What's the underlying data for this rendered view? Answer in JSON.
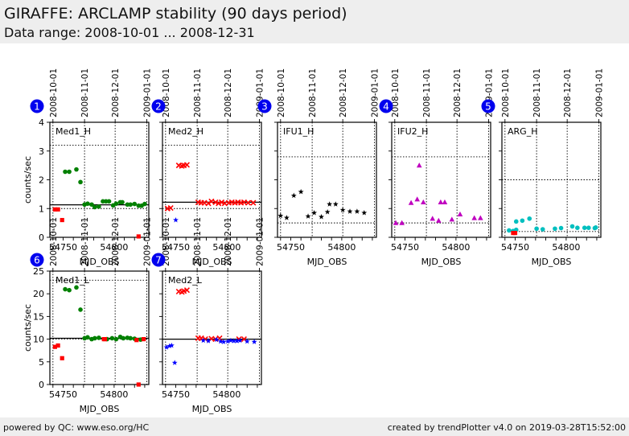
{
  "header": {
    "title": "GIRAFFE: ARCLAMP stability (90 days period)",
    "subtitle": "Data range: 2008-10-01 ... 2008-12-31"
  },
  "footer": {
    "left": "powered by QC: www.eso.org/HC",
    "right": "created by trendPlotter v4.0 on 2019-03-28T15:52:00"
  },
  "colors": {
    "badge": "#0000ee",
    "green": "#008000",
    "red": "#ff0000",
    "blue": "#0000ff",
    "black": "#000000",
    "magenta": "#bf00bf",
    "cyan": "#00bfbf"
  },
  "chart_data": [
    {
      "type": "scatter",
      "panel": 1,
      "label": "Med1_H",
      "xlabel": "MJD_OBS",
      "ylabel": "counts/sec",
      "xlim": [
        54737,
        54834
      ],
      "ylim": [
        0,
        4
      ],
      "yticks": [
        0,
        1,
        2,
        3,
        4
      ],
      "ytick_labels": [
        "0",
        "1",
        "2",
        "3",
        "4"
      ],
      "xticks": [
        54750,
        54800
      ],
      "xtick_labels": [
        "54750",
        "54800"
      ],
      "date_ticks": [
        {
          "mjd": 54740,
          "label": "2008-10-01"
        },
        {
          "mjd": 54771,
          "label": "2008-11-01"
        },
        {
          "mjd": 54801,
          "label": "2008-12-01"
        },
        {
          "mjd": 54832,
          "label": "2009-01-01"
        }
      ],
      "reference_line": 1.13,
      "threshold_lines": [
        1.0,
        3.2
      ],
      "series": [
        {
          "name": "ok",
          "marker": "circle",
          "color": "green",
          "points": [
            [
              54752,
              2.28
            ],
            [
              54756,
              2.28
            ],
            [
              54763,
              2.36
            ],
            [
              54767,
              1.92
            ],
            [
              54771,
              1.14
            ],
            [
              54774,
              1.17
            ],
            [
              54778,
              1.14
            ],
            [
              54781,
              1.05
            ],
            [
              54785,
              1.07
            ],
            [
              54789,
              1.25
            ],
            [
              54792,
              1.25
            ],
            [
              54795,
              1.25
            ],
            [
              54799,
              1.11
            ],
            [
              54802,
              1.17
            ],
            [
              54806,
              1.22
            ],
            [
              54808,
              1.22
            ],
            [
              54813,
              1.14
            ],
            [
              54816,
              1.14
            ],
            [
              54820,
              1.16
            ],
            [
              54824,
              1.1
            ],
            [
              54827,
              1.1
            ],
            [
              54830,
              1.16
            ]
          ]
        },
        {
          "name": "outlier",
          "marker": "square",
          "color": "red",
          "points": [
            [
              54742,
              0.97
            ],
            [
              54745,
              0.97
            ],
            [
              54749,
              0.6
            ],
            [
              54824,
              0.03
            ]
          ]
        }
      ]
    },
    {
      "type": "scatter",
      "panel": 2,
      "label": "Med2_H",
      "xlabel": "MJD_OBS",
      "ylabel": "",
      "xlim": [
        54737,
        54834
      ],
      "ylim": [
        0,
        4
      ],
      "yticks": [
        0,
        1,
        2,
        3,
        4
      ],
      "ytick_labels": [
        "",
        "",
        "",
        "",
        ""
      ],
      "xticks": [
        54750,
        54800
      ],
      "xtick_labels": [
        "54750",
        "54800"
      ],
      "date_ticks": [
        {
          "mjd": 54740,
          "label": "2008-10-01"
        },
        {
          "mjd": 54771,
          "label": "2008-11-01"
        },
        {
          "mjd": 54801,
          "label": "2008-12-01"
        },
        {
          "mjd": 54832,
          "label": "2009-01-01"
        }
      ],
      "reference_line": 1.22,
      "threshold_lines": [
        1.0,
        3.2
      ],
      "series": [
        {
          "name": "ok",
          "marker": "x",
          "color": "red",
          "points": [
            [
              54742,
              1.0
            ],
            [
              54745,
              1.02
            ],
            [
              54753,
              2.5
            ],
            [
              54756,
              2.48
            ],
            [
              54758,
              2.5
            ],
            [
              54761,
              2.52
            ],
            [
              54772,
              1.22
            ],
            [
              54775,
              1.2
            ],
            [
              54778,
              1.2
            ],
            [
              54782,
              1.18
            ],
            [
              54785,
              1.25
            ],
            [
              54789,
              1.22
            ],
            [
              54792,
              1.18
            ],
            [
              54795,
              1.22
            ],
            [
              54798,
              1.18
            ],
            [
              54802,
              1.2
            ],
            [
              54805,
              1.22
            ],
            [
              54808,
              1.2
            ],
            [
              54811,
              1.22
            ],
            [
              54814,
              1.2
            ],
            [
              54817,
              1.22
            ],
            [
              54821,
              1.2
            ],
            [
              54826,
              1.2
            ]
          ]
        },
        {
          "name": "other",
          "marker": "star",
          "color": "blue",
          "points": [
            [
              54750,
              0.6
            ]
          ]
        }
      ]
    },
    {
      "type": "scatter",
      "panel": 3,
      "label": "IFU1_H",
      "xlabel": "MJD_OBS",
      "ylabel": "",
      "xlim": [
        54737,
        54834
      ],
      "ylim": [
        0,
        4
      ],
      "yticks": [
        0,
        1,
        2,
        3,
        4
      ],
      "ytick_labels": [
        "",
        "",
        "",
        "",
        ""
      ],
      "xticks": [
        54750,
        54800
      ],
      "xtick_labels": [
        "54750",
        "54800"
      ],
      "date_ticks": [
        {
          "mjd": 54740,
          "label": "2008-10-01"
        },
        {
          "mjd": 54771,
          "label": "2008-11-01"
        },
        {
          "mjd": 54801,
          "label": "2008-12-01"
        },
        {
          "mjd": 54832,
          "label": "2009-01-01"
        }
      ],
      "reference_line": null,
      "threshold_lines": [
        0.5,
        2.8
      ],
      "series": [
        {
          "name": "ok",
          "marker": "star",
          "color": "black",
          "points": [
            [
              54740,
              0.75
            ],
            [
              54746,
              0.68
            ],
            [
              54753,
              1.45
            ],
            [
              54760,
              1.58
            ],
            [
              54767,
              0.73
            ],
            [
              54773,
              0.85
            ],
            [
              54780,
              0.71
            ],
            [
              54786,
              0.88
            ],
            [
              54788,
              1.15
            ],
            [
              54794,
              1.15
            ],
            [
              54801,
              0.95
            ],
            [
              54808,
              0.9
            ],
            [
              54815,
              0.9
            ],
            [
              54822,
              0.85
            ]
          ]
        }
      ]
    },
    {
      "type": "scatter",
      "panel": 4,
      "label": "IFU2_H",
      "xlabel": "MJD_OBS",
      "ylabel": "",
      "xlim": [
        54737,
        54834
      ],
      "ylim": [
        0,
        4
      ],
      "yticks": [
        0,
        1,
        2,
        3,
        4
      ],
      "ytick_labels": [
        "",
        "",
        "",
        "",
        ""
      ],
      "xticks": [
        54750,
        54800
      ],
      "xtick_labels": [
        "54750",
        "54800"
      ],
      "date_ticks": [
        {
          "mjd": 54740,
          "label": "2008-10-01"
        },
        {
          "mjd": 54771,
          "label": "2008-11-01"
        },
        {
          "mjd": 54801,
          "label": "2008-12-01"
        },
        {
          "mjd": 54832,
          "label": "2009-01-01"
        }
      ],
      "reference_line": null,
      "threshold_lines": [
        0.5,
        2.8
      ],
      "series": [
        {
          "name": "ok",
          "marker": "triangle",
          "color": "magenta",
          "points": [
            [
              54741,
              0.5
            ],
            [
              54747,
              0.5
            ],
            [
              54756,
              1.2
            ],
            [
              54762,
              1.32
            ],
            [
              54764,
              2.5
            ],
            [
              54768,
              1.22
            ],
            [
              54777,
              0.65
            ],
            [
              54783,
              0.58
            ],
            [
              54785,
              1.22
            ],
            [
              54789,
              1.22
            ],
            [
              54796,
              0.62
            ],
            [
              54804,
              0.8
            ],
            [
              54818,
              0.67
            ],
            [
              54824,
              0.67
            ]
          ]
        }
      ]
    },
    {
      "type": "scatter",
      "panel": 5,
      "label": "ARG_H",
      "xlabel": "MJD_OBS",
      "ylabel": "",
      "xlim": [
        54737,
        54834
      ],
      "ylim": [
        0,
        4
      ],
      "yticks": [
        0,
        1,
        2,
        3,
        4
      ],
      "ytick_labels": [
        "",
        "",
        "",
        "",
        ""
      ],
      "xticks": [
        54750,
        54800
      ],
      "xtick_labels": [
        "54750",
        "54800"
      ],
      "date_ticks": [
        {
          "mjd": 54740,
          "label": "2008-10-01"
        },
        {
          "mjd": 54771,
          "label": "2008-11-01"
        },
        {
          "mjd": 54801,
          "label": "2008-12-01"
        },
        {
          "mjd": 54832,
          "label": "2009-01-01"
        }
      ],
      "reference_line": null,
      "threshold_lines": [
        0.2,
        2.0
      ],
      "series": [
        {
          "name": "ok",
          "marker": "circle",
          "color": "cyan",
          "points": [
            [
              54744,
              0.24
            ],
            [
              54748,
              0.22
            ],
            [
              54751,
              0.26
            ],
            [
              54751,
              0.55
            ],
            [
              54757,
              0.58
            ],
            [
              54764,
              0.65
            ],
            [
              54771,
              0.3
            ],
            [
              54777,
              0.28
            ],
            [
              54789,
              0.3
            ],
            [
              54795,
              0.32
            ],
            [
              54806,
              0.38
            ],
            [
              54811,
              0.33
            ],
            [
              54818,
              0.33
            ],
            [
              54822,
              0.33
            ],
            [
              54828,
              0.32
            ],
            [
              54829,
              0.34
            ]
          ]
        },
        {
          "name": "outlier",
          "marker": "square",
          "color": "red",
          "points": [
            [
              54748,
              0.15
            ],
            [
              54750,
              0.15
            ]
          ]
        }
      ]
    },
    {
      "type": "scatter",
      "panel": 6,
      "label": "Med1_L",
      "xlabel": "MJD_OBS",
      "ylabel": "counts/sec",
      "xlim": [
        54737,
        54834
      ],
      "ylim": [
        0,
        25
      ],
      "yticks": [
        0,
        5,
        10,
        15,
        20,
        25
      ],
      "ytick_labels": [
        "0",
        "5",
        "10",
        "15",
        "20",
        "25"
      ],
      "xticks": [
        54750,
        54800
      ],
      "xtick_labels": [
        "54750",
        "54800"
      ],
      "date_ticks": [
        {
          "mjd": 54740,
          "label": "2008-10-01"
        },
        {
          "mjd": 54771,
          "label": "2008-11-01"
        },
        {
          "mjd": 54801,
          "label": "2008-12-01"
        },
        {
          "mjd": 54832,
          "label": "2009-01-01"
        }
      ],
      "reference_line": 10.2,
      "threshold_lines": [
        10.0,
        23.0
      ],
      "series": [
        {
          "name": "ok",
          "marker": "circle",
          "color": "green",
          "points": [
            [
              54752,
              21.0
            ],
            [
              54756,
              20.8
            ],
            [
              54763,
              21.4
            ],
            [
              54767,
              16.5
            ],
            [
              54771,
              10.2
            ],
            [
              54774,
              10.4
            ],
            [
              54778,
              10.0
            ],
            [
              54781,
              10.2
            ],
            [
              54785,
              10.3
            ],
            [
              54793,
              10.0
            ],
            [
              54798,
              10.2
            ],
            [
              54802,
              10.0
            ],
            [
              54806,
              10.5
            ],
            [
              54809,
              10.2
            ],
            [
              54813,
              10.3
            ],
            [
              54816,
              10.2
            ],
            [
              54820,
              10.1
            ],
            [
              54826,
              9.9
            ]
          ]
        },
        {
          "name": "outlier",
          "marker": "square",
          "color": "red",
          "points": [
            [
              54742,
              8.3
            ],
            [
              54745,
              8.6
            ],
            [
              54749,
              5.8
            ],
            [
              54790,
              10.0
            ],
            [
              54791,
              10.0
            ],
            [
              54822,
              9.8
            ],
            [
              54824,
              0.0
            ],
            [
              54829,
              10.0
            ]
          ]
        }
      ]
    },
    {
      "type": "scatter",
      "panel": 7,
      "label": "Med2_L",
      "xlabel": "MJD_OBS",
      "ylabel": "",
      "xlim": [
        54737,
        54834
      ],
      "ylim": [
        0,
        25
      ],
      "yticks": [
        0,
        5,
        10,
        15,
        20,
        25
      ],
      "ytick_labels": [
        "",
        "",
        "",
        "",
        "",
        ""
      ],
      "xticks": [
        54750,
        54800
      ],
      "xtick_labels": [
        "54750",
        "54800"
      ],
      "date_ticks": [
        {
          "mjd": 54740,
          "label": "2008-10-01"
        },
        {
          "mjd": 54771,
          "label": "2008-11-01"
        },
        {
          "mjd": 54801,
          "label": "2008-12-01"
        },
        {
          "mjd": 54832,
          "label": "2009-01-01"
        }
      ],
      "reference_line": 10.0,
      "threshold_lines": [
        10.0,
        25.0
      ],
      "series": [
        {
          "name": "ok",
          "marker": "x",
          "color": "red",
          "points": [
            [
              54753,
              20.5
            ],
            [
              54756,
              20.4
            ],
            [
              54758,
              20.6
            ],
            [
              54761,
              20.8
            ],
            [
              54772,
              10.2
            ],
            [
              54775,
              10.2
            ],
            [
              54779,
              10.0
            ],
            [
              54785,
              10.1
            ],
            [
              54789,
              10.0
            ],
            [
              54793,
              10.2
            ],
            [
              54812,
              10.0
            ],
            [
              54817,
              10.0
            ]
          ]
        },
        {
          "name": "other",
          "marker": "star",
          "color": "blue",
          "points": [
            [
              54741,
              8.2
            ],
            [
              54744,
              8.5
            ],
            [
              54746,
              8.6
            ],
            [
              54749,
              4.8
            ],
            [
              54777,
              9.7
            ],
            [
              54782,
              9.6
            ],
            [
              54790,
              9.9
            ],
            [
              54794,
              9.5
            ],
            [
              54797,
              9.4
            ],
            [
              54801,
              9.5
            ],
            [
              54804,
              9.7
            ],
            [
              54807,
              9.6
            ],
            [
              54810,
              9.6
            ],
            [
              54813,
              9.7
            ],
            [
              54820,
              9.5
            ],
            [
              54827,
              9.4
            ]
          ]
        }
      ]
    }
  ]
}
